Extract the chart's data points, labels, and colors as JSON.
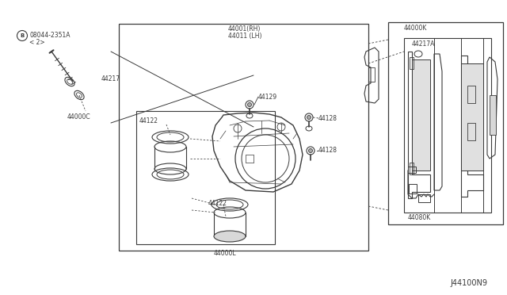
{
  "bg_color": "#ffffff",
  "diagram_id": "J44100N9",
  "fig_width": 6.4,
  "fig_height": 3.72,
  "dpi": 100,
  "line_color": "#3a3a3a",
  "text_color": "#3a3a3a",
  "font_size": 5.5,
  "parts": {
    "bolt_circle_label": "B",
    "bolt_label1": "08044-2351A",
    "bolt_label2": "< 2>",
    "p44217": "44217",
    "p44000C": "44000C",
    "p44001RH": "44001(RH)",
    "p44011LH": "44011 (LH)",
    "p44129": "44129",
    "p44128a": "44128",
    "p44128b": "44128",
    "p44122a": "44122",
    "p44122b": "44122",
    "p44000L": "44000L",
    "p44000K": "44000K",
    "p44217A": "44217A",
    "p44080K": "44080K"
  }
}
